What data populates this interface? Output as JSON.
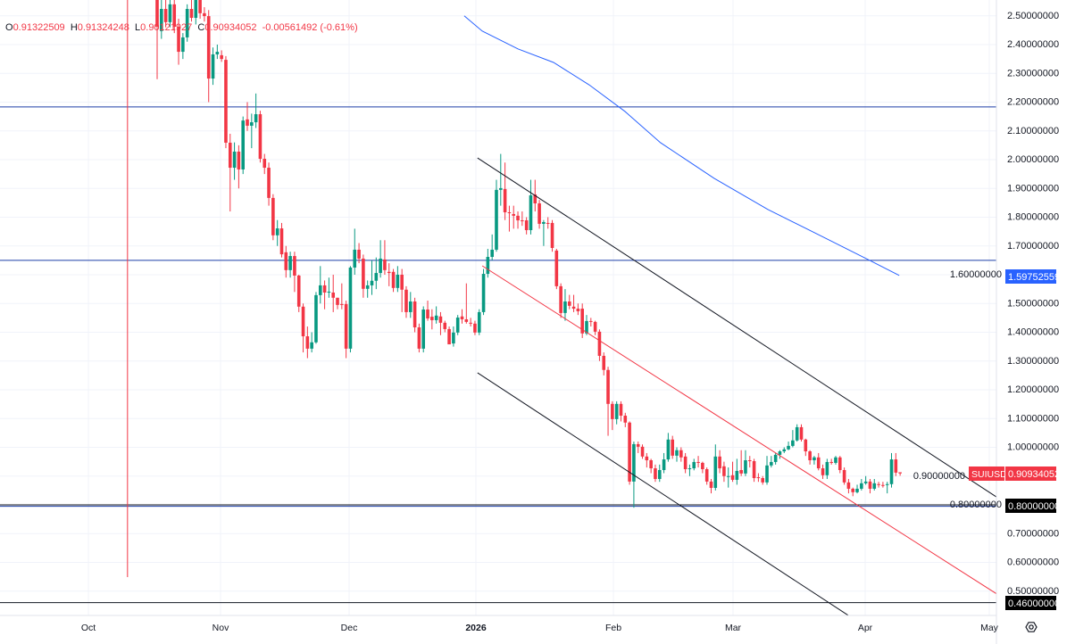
{
  "legend": {
    "open_label": "O",
    "open": "0.91322509",
    "high_label": "H",
    "high": "0.91324248",
    "low_label": "L",
    "low": "0.90121927",
    "close_label": "C",
    "close": "0.90934052",
    "change": "-0.00561492 (-0.61%)"
  },
  "symbol_label": "SUIUSD",
  "last_price_label": "0.90934052",
  "ma_label": "1.59752559",
  "level_labels": [
    "0.80000000",
    "0.46000000"
  ],
  "settings_icon": "gear-icon",
  "colors": {
    "up": "#089981",
    "down": "#f23645",
    "ma": "#2962ff",
    "level_blue": "#1e3fa8",
    "level_black": "#131722",
    "channel_black": "#131722",
    "channel_red": "#f23645",
    "grid": "#f0f3fa"
  },
  "chart_data": {
    "type": "candlestick",
    "symbol": "SUIUSD",
    "ylim": [
      0.45,
      2.5
    ],
    "grid": true,
    "y_ticks": [
      "2.50000000",
      "2.40000000",
      "2.30000000",
      "2.20000000",
      "2.10000000",
      "2.00000000",
      "1.90000000",
      "1.80000000",
      "1.70000000",
      "1.60000000",
      "1.50000000",
      "1.40000000",
      "1.30000000",
      "1.20000000",
      "1.10000000",
      "1.00000000",
      "0.90000000",
      "0.80000000",
      "0.70000000",
      "0.60000000",
      "0.50000000"
    ],
    "x_ticks": [
      "Oct",
      "Nov",
      "Dec",
      "2026",
      "Feb",
      "Mar",
      "Apr",
      "May"
    ],
    "ohlc": [
      [
        2.586,
        2.62,
        2.28,
        2.462
      ],
      [
        2.447,
        2.56,
        2.42,
        2.524
      ],
      [
        2.524,
        2.56,
        2.46,
        2.478
      ],
      [
        2.478,
        2.57,
        2.46,
        2.54
      ],
      [
        2.54,
        2.57,
        2.44,
        2.462
      ],
      [
        2.462,
        2.49,
        2.33,
        2.375
      ],
      [
        2.375,
        2.44,
        2.35,
        2.425
      ],
      [
        2.425,
        2.54,
        2.41,
        2.524
      ],
      [
        2.524,
        2.56,
        2.48,
        2.493
      ],
      [
        2.493,
        2.58,
        2.47,
        2.555
      ],
      [
        2.555,
        2.58,
        2.49,
        2.509
      ],
      [
        2.509,
        2.53,
        2.48,
        2.499
      ],
      [
        2.499,
        2.52,
        2.2,
        2.282
      ],
      [
        2.282,
        2.39,
        2.26,
        2.366
      ],
      [
        2.366,
        2.4,
        2.35,
        2.375
      ],
      [
        2.363,
        2.38,
        2.34,
        2.35
      ],
      [
        2.347,
        2.36,
        2.04,
        2.059
      ],
      [
        2.059,
        2.09,
        1.82,
        1.972
      ],
      [
        1.972,
        2.06,
        1.93,
        2.028
      ],
      [
        2.028,
        2.05,
        1.9,
        1.966
      ],
      [
        1.966,
        2.15,
        1.95,
        2.136
      ],
      [
        2.14,
        2.2,
        2.1,
        2.118
      ],
      [
        2.118,
        2.16,
        2.04,
        2.13
      ],
      [
        2.13,
        2.23,
        2.11,
        2.158
      ],
      [
        2.158,
        2.17,
        1.99,
        2.003
      ],
      [
        2.003,
        2.02,
        1.95,
        1.972
      ],
      [
        1.972,
        1.99,
        1.84,
        1.867
      ],
      [
        1.867,
        1.88,
        1.72,
        1.737
      ],
      [
        1.737,
        1.79,
        1.7,
        1.761
      ],
      [
        1.761,
        1.78,
        1.66,
        1.671
      ],
      [
        1.678,
        1.7,
        1.59,
        1.616
      ],
      [
        1.616,
        1.68,
        1.59,
        1.665
      ],
      [
        1.665,
        1.68,
        1.54,
        1.597
      ],
      [
        1.597,
        1.6,
        1.47,
        1.489
      ],
      [
        1.489,
        1.5,
        1.33,
        1.386
      ],
      [
        1.386,
        1.42,
        1.31,
        1.343
      ],
      [
        1.343,
        1.4,
        1.33,
        1.365
      ],
      [
        1.365,
        1.54,
        1.36,
        1.529
      ],
      [
        1.529,
        1.63,
        1.5,
        1.563
      ],
      [
        1.563,
        1.58,
        1.48,
        1.538
      ],
      [
        1.541,
        1.59,
        1.52,
        1.541
      ],
      [
        1.538,
        1.6,
        1.47,
        1.52
      ],
      [
        1.52,
        1.52,
        1.48,
        1.495
      ],
      [
        1.498,
        1.57,
        1.48,
        1.495
      ],
      [
        1.498,
        1.51,
        1.31,
        1.343
      ],
      [
        1.343,
        1.63,
        1.33,
        1.625
      ],
      [
        1.625,
        1.76,
        1.6,
        1.687
      ],
      [
        1.687,
        1.71,
        1.64,
        1.656
      ],
      [
        1.656,
        1.67,
        1.52,
        1.551
      ],
      [
        1.551,
        1.58,
        1.52,
        1.563
      ],
      [
        1.563,
        1.65,
        1.53,
        1.579
      ],
      [
        1.579,
        1.66,
        1.55,
        1.606
      ],
      [
        1.606,
        1.72,
        1.59,
        1.656
      ],
      [
        1.653,
        1.72,
        1.6,
        1.616
      ],
      [
        1.61,
        1.64,
        1.56,
        1.606
      ],
      [
        1.61,
        1.62,
        1.54,
        1.554
      ],
      [
        1.554,
        1.63,
        1.54,
        1.6
      ],
      [
        1.6,
        1.62,
        1.47,
        1.548
      ],
      [
        1.548,
        1.56,
        1.45,
        1.47
      ],
      [
        1.47,
        1.54,
        1.45,
        1.507
      ],
      [
        1.507,
        1.52,
        1.4,
        1.417
      ],
      [
        1.417,
        1.43,
        1.33,
        1.343
      ],
      [
        1.343,
        1.49,
        1.33,
        1.479
      ],
      [
        1.479,
        1.51,
        1.44,
        1.448
      ],
      [
        1.454,
        1.48,
        1.41,
        1.442
      ],
      [
        1.442,
        1.49,
        1.43,
        1.458
      ],
      [
        1.455,
        1.47,
        1.39,
        1.433
      ],
      [
        1.433,
        1.44,
        1.4,
        1.411
      ],
      [
        1.411,
        1.42,
        1.36,
        1.358
      ],
      [
        1.361,
        1.42,
        1.35,
        1.399
      ],
      [
        1.399,
        1.46,
        1.39,
        1.451
      ],
      [
        1.455,
        1.48,
        1.43,
        1.445
      ],
      [
        1.445,
        1.57,
        1.43,
        1.436
      ],
      [
        1.433,
        1.45,
        1.42,
        1.43
      ],
      [
        1.43,
        1.44,
        1.39,
        1.399
      ],
      [
        1.399,
        1.48,
        1.39,
        1.47
      ],
      [
        1.47,
        1.62,
        1.46,
        1.603
      ],
      [
        1.603,
        1.69,
        1.59,
        1.662
      ],
      [
        1.662,
        1.74,
        1.65,
        1.687
      ],
      [
        1.687,
        1.93,
        1.68,
        1.895
      ],
      [
        1.895,
        2.02,
        1.84,
        1.901
      ],
      [
        1.898,
        1.99,
        1.79,
        1.817
      ],
      [
        1.817,
        1.84,
        1.75,
        1.814
      ],
      [
        1.811,
        1.84,
        1.76,
        1.805
      ],
      [
        1.805,
        1.82,
        1.76,
        1.789
      ],
      [
        1.789,
        1.82,
        1.77,
        1.786
      ],
      [
        1.789,
        1.8,
        1.74,
        1.755
      ],
      [
        1.755,
        1.93,
        1.74,
        1.876
      ],
      [
        1.879,
        1.93,
        1.82,
        1.848
      ],
      [
        1.848,
        1.86,
        1.76,
        1.777
      ],
      [
        1.777,
        1.79,
        1.7,
        1.783
      ],
      [
        1.78,
        1.8,
        1.76,
        1.777
      ],
      [
        1.78,
        1.79,
        1.68,
        1.693
      ],
      [
        1.684,
        1.69,
        1.55,
        1.56
      ],
      [
        1.56,
        1.57,
        1.45,
        1.467
      ],
      [
        1.467,
        1.55,
        1.44,
        1.507
      ],
      [
        1.507,
        1.53,
        1.48,
        1.492
      ],
      [
        1.489,
        1.53,
        1.47,
        1.482
      ],
      [
        1.482,
        1.5,
        1.46,
        1.473
      ],
      [
        1.482,
        1.5,
        1.38,
        1.396
      ],
      [
        1.396,
        1.46,
        1.39,
        1.439
      ],
      [
        1.439,
        1.45,
        1.42,
        1.436
      ],
      [
        1.436,
        1.44,
        1.39,
        1.402
      ],
      [
        1.402,
        1.41,
        1.3,
        1.318
      ],
      [
        1.318,
        1.33,
        1.25,
        1.269
      ],
      [
        1.269,
        1.28,
        1.04,
        1.151
      ],
      [
        1.151,
        1.16,
        1.06,
        1.098
      ],
      [
        1.098,
        1.16,
        1.08,
        1.151
      ],
      [
        1.151,
        1.16,
        1.09,
        1.11
      ],
      [
        1.11,
        1.12,
        1.07,
        1.086
      ],
      [
        1.086,
        1.09,
        0.87,
        0.881
      ],
      [
        0.881,
        1.02,
        0.79,
        1.011
      ],
      [
        1.011,
        1.02,
        0.98,
        1.002
      ],
      [
        1.002,
        1.01,
        0.96,
        0.968
      ],
      [
        0.968,
        0.98,
        0.93,
        0.955
      ],
      [
        0.955,
        0.96,
        0.91,
        0.927
      ],
      [
        0.927,
        0.94,
        0.88,
        0.89
      ],
      [
        0.89,
        0.94,
        0.88,
        0.921
      ],
      [
        0.921,
        0.98,
        0.91,
        0.958
      ],
      [
        0.958,
        1.05,
        0.95,
        1.027
      ],
      [
        1.027,
        1.04,
        0.96,
        0.971
      ],
      [
        0.971,
        1.0,
        0.95,
        0.99
      ],
      [
        0.99,
        1.0,
        0.95,
        0.965
      ],
      [
        0.968,
        0.98,
        0.91,
        0.924
      ],
      [
        0.927,
        0.94,
        0.9,
        0.927
      ],
      [
        0.927,
        0.96,
        0.92,
        0.949
      ],
      [
        0.949,
        0.97,
        0.93,
        0.946
      ],
      [
        0.946,
        0.95,
        0.91,
        0.924
      ],
      [
        0.924,
        0.93,
        0.87,
        0.881
      ],
      [
        0.881,
        0.89,
        0.84,
        0.859
      ],
      [
        0.859,
        1.01,
        0.85,
        0.968
      ],
      [
        0.968,
        0.99,
        0.91,
        0.927
      ],
      [
        0.934,
        0.95,
        0.88,
        0.9
      ],
      [
        0.9,
        0.93,
        0.86,
        0.9
      ],
      [
        0.903,
        0.95,
        0.88,
        0.887
      ],
      [
        0.887,
        0.96,
        0.87,
        0.918
      ],
      [
        0.921,
        0.99,
        0.9,
        0.909
      ],
      [
        0.909,
        0.99,
        0.9,
        0.955
      ],
      [
        0.955,
        0.97,
        0.93,
        0.952
      ],
      [
        0.952,
        0.96,
        0.88,
        0.893
      ],
      [
        0.896,
        0.91,
        0.88,
        0.893
      ],
      [
        0.893,
        0.9,
        0.87,
        0.878
      ],
      [
        0.878,
        0.97,
        0.87,
        0.937
      ],
      [
        0.937,
        0.97,
        0.93,
        0.949
      ],
      [
        0.949,
        0.98,
        0.94,
        0.974
      ],
      [
        0.974,
        0.99,
        0.96,
        0.986
      ],
      [
        0.986,
        1.0,
        0.98,
        0.993
      ],
      [
        0.993,
        1.02,
        0.99,
        1.005
      ],
      [
        1.005,
        1.06,
        1.0,
        1.024
      ],
      [
        1.024,
        1.08,
        1.02,
        1.07
      ],
      [
        1.07,
        1.08,
        1.02,
        1.027
      ],
      [
        1.027,
        1.03,
        0.97,
        0.986
      ],
      [
        0.986,
        0.99,
        0.94,
        0.955
      ],
      [
        0.955,
        0.97,
        0.94,
        0.965
      ],
      [
        0.965,
        0.98,
        0.92,
        0.927
      ],
      [
        0.927,
        0.94,
        0.89,
        0.903
      ],
      [
        0.903,
        0.96,
        0.89,
        0.949
      ],
      [
        0.949,
        0.96,
        0.94,
        0.946
      ],
      [
        0.946,
        0.97,
        0.94,
        0.965
      ],
      [
        0.965,
        0.97,
        0.91,
        0.921
      ],
      [
        0.921,
        0.93,
        0.87,
        0.878
      ],
      [
        0.878,
        0.89,
        0.84,
        0.856
      ],
      [
        0.856,
        0.86,
        0.83,
        0.844
      ],
      [
        0.844,
        0.87,
        0.84,
        0.856
      ],
      [
        0.856,
        0.89,
        0.85,
        0.875
      ],
      [
        0.875,
        0.9,
        0.87,
        0.881
      ],
      [
        0.881,
        0.89,
        0.84,
        0.856
      ],
      [
        0.856,
        0.89,
        0.85,
        0.875
      ],
      [
        0.872,
        0.88,
        0.86,
        0.869
      ],
      [
        0.869,
        0.88,
        0.86,
        0.866
      ],
      [
        0.872,
        0.88,
        0.84,
        0.872
      ],
      [
        0.872,
        0.98,
        0.86,
        0.958
      ],
      [
        0.958,
        0.98,
        0.9,
        0.912
      ],
      [
        0.91322509,
        0.91324248,
        0.90121927,
        0.90934052
      ]
    ],
    "moving_average": [
      [
        71.5,
        2.5
      ],
      [
        75.7,
        2.447
      ],
      [
        84,
        2.385
      ],
      [
        92.3,
        2.338
      ],
      [
        100.6,
        2.26
      ],
      [
        108.9,
        2.168
      ],
      [
        117.2,
        2.059
      ],
      [
        129.7,
        1.935
      ],
      [
        142.2,
        1.827
      ],
      [
        154.7,
        1.734
      ],
      [
        165.1,
        1.656
      ],
      [
        172.8,
        1.5975
      ]
    ],
    "horizontal_levels": [
      {
        "price": 2.1835,
        "color": "blue"
      },
      {
        "price": 1.65,
        "color": "blue"
      },
      {
        "price": 0.795,
        "color": "blue"
      },
      {
        "price": 0.8,
        "color": "black"
      },
      {
        "price": 0.46,
        "color": "black"
      }
    ],
    "channel_lines": [
      {
        "color": "black",
        "from": [
          74.6,
          2.006
        ],
        "to": [
          196.3,
          0.819
        ]
      },
      {
        "color": "red",
        "from": [
          75.7,
          1.631
        ],
        "to": [
          213.7,
          0.317
        ]
      },
      {
        "color": "black",
        "from": [
          74.6,
          1.259
        ],
        "to": [
          160.9,
          0.416
        ]
      }
    ],
    "vertical_marker": {
      "index": -6.9,
      "price_from": 2.5,
      "price_to": 0.549,
      "color": "red"
    }
  }
}
